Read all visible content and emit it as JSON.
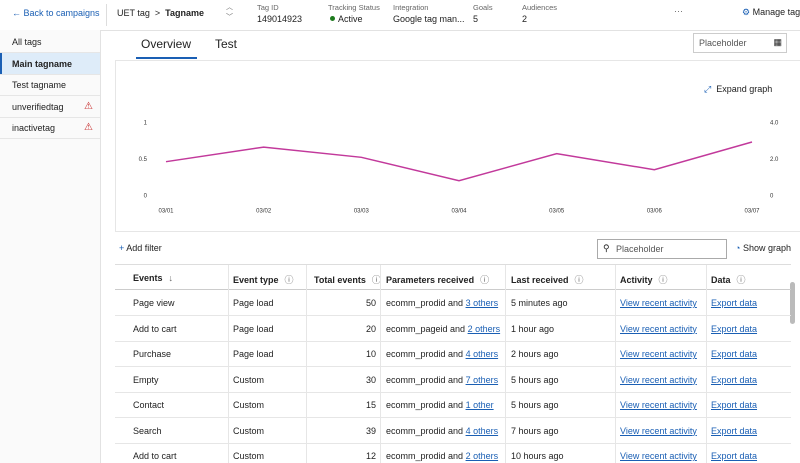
{
  "header": {
    "back": "Back to campaigns",
    "breadcrumb": [
      "UET tag",
      "Tagname"
    ],
    "fields": [
      {
        "label": "Tag ID",
        "value": "149014923"
      },
      {
        "label": "Tracking Status",
        "value": "Active"
      },
      {
        "label": "Integration",
        "value": "Google tag man..."
      },
      {
        "label": "Goals",
        "value": "5"
      },
      {
        "label": "Audiences",
        "value": "2"
      }
    ],
    "more": "···",
    "manage": "Manage tag"
  },
  "sidebar": {
    "items": [
      "All tags",
      "Main tagname",
      "Test tagname",
      "unverifiedtag",
      "inactivetag"
    ]
  },
  "tabs": [
    "Overview",
    "Test"
  ],
  "date_placeholder": "Placeholder",
  "expand_graph": "Expand graph",
  "chart_data": {
    "type": "line",
    "categories": [
      "03/01",
      "03/02",
      "03/03",
      "03/04",
      "03/05",
      "03/06",
      "03/07"
    ],
    "values": [
      0.47,
      0.67,
      0.53,
      0.21,
      0.58,
      0.36,
      0.74
    ],
    "color": "#c2399b",
    "ylim": [
      0,
      1
    ],
    "yticks": [
      0,
      0.5,
      1
    ],
    "y2lim": [
      0,
      4
    ],
    "y2ticks": [
      0,
      {
        "value": 2,
        "label": "2.0"
      },
      {
        "value": 4,
        "label": "4.0"
      }
    ]
  },
  "toolbar": {
    "add_filter": "Add filter",
    "search_placeholder": "Placeholder",
    "show_graph": "Show graph"
  },
  "table": {
    "columns": [
      "Events",
      "Event type",
      "Total events",
      "Parameters received",
      "Last received",
      "Activity",
      "Data"
    ],
    "rows": [
      [
        "Page view",
        "Page load",
        50,
        "ecomm_prodid and",
        "3 others",
        "5 minutes ago",
        "View recent activity",
        "Export data"
      ],
      [
        "Add to cart",
        "Page load",
        20,
        "ecomm_pageid and",
        "2 others",
        "1 hour ago",
        "View recent activity",
        "Export data"
      ],
      [
        "Purchase",
        "Page load",
        10,
        "ecomm_prodid and",
        "4 others",
        "2 hours ago",
        "View recent activity",
        "Export data"
      ],
      [
        "Empty",
        "Custom",
        30,
        "ecomm_prodid and",
        "7 others",
        "5 hours ago",
        "View recent activity",
        "Export data"
      ],
      [
        "Contact",
        "Custom",
        15,
        "ecomm_prodid and",
        "1 other",
        "5 hours ago",
        "View recent activity",
        "Export data"
      ],
      [
        "Search",
        "Custom",
        39,
        "ecomm_prodid and",
        "4 others",
        "7 hours ago",
        "View recent activity",
        "Export data"
      ],
      [
        "Add to cart",
        "Custom",
        12,
        "ecomm_prodid and",
        "2 others",
        "10 hours ago",
        "View recent activity",
        "Export data"
      ]
    ]
  }
}
